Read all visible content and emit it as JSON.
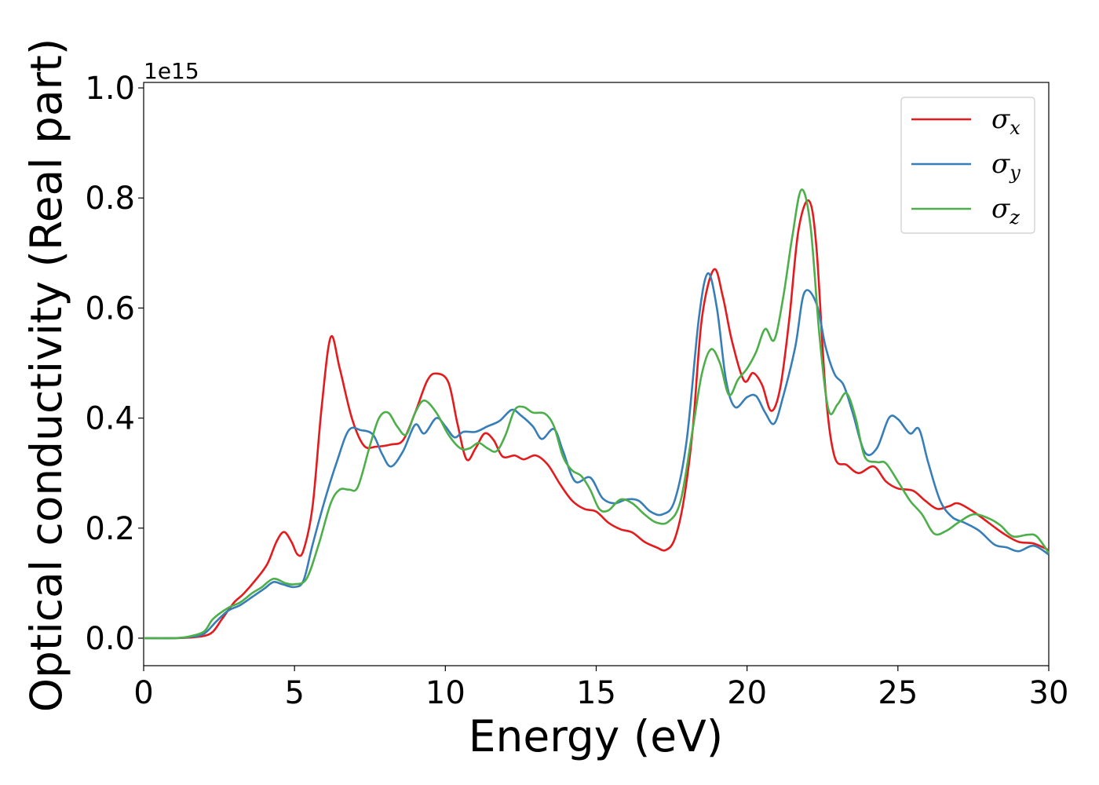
{
  "chart_data": {
    "type": "line",
    "title": "",
    "xlabel": "Energy (eV)",
    "ylabel": "Optical conductivity (Real part)",
    "y_offset_text": "1e15",
    "xlim": [
      0,
      30
    ],
    "ylim": [
      -0.05,
      1.01
    ],
    "y_scale_multiplier": 1000000000000000.0,
    "x_ticks": [
      0,
      5,
      10,
      15,
      20,
      25,
      30
    ],
    "x_tick_labels": [
      "0",
      "5",
      "10",
      "15",
      "20",
      "25",
      "30"
    ],
    "y_ticks": [
      0.0,
      0.2,
      0.4,
      0.6,
      0.8,
      1.0
    ],
    "y_tick_labels": [
      "0.0",
      "0.2",
      "0.4",
      "0.6",
      "0.8",
      "1.0"
    ],
    "grid": false,
    "legend_position": "top-right",
    "series": [
      {
        "name": "σx",
        "symbol": "σ",
        "subscript": "x",
        "color": "#e41a1c",
        "points": [
          [
            0,
            0
          ],
          [
            1,
            0
          ],
          [
            1.5,
            0.001
          ],
          [
            2,
            0.004
          ],
          [
            2.3,
            0.012
          ],
          [
            2.6,
            0.035
          ],
          [
            3,
            0.065
          ],
          [
            3.3,
            0.08
          ],
          [
            3.7,
            0.105
          ],
          [
            4.1,
            0.135
          ],
          [
            4.4,
            0.175
          ],
          [
            4.65,
            0.193
          ],
          [
            4.9,
            0.175
          ],
          [
            5.1,
            0.152
          ],
          [
            5.3,
            0.16
          ],
          [
            5.6,
            0.24
          ],
          [
            5.9,
            0.42
          ],
          [
            6.2,
            0.547
          ],
          [
            6.5,
            0.49
          ],
          [
            6.9,
            0.4
          ],
          [
            7.3,
            0.35
          ],
          [
            7.7,
            0.348
          ],
          [
            8.2,
            0.352
          ],
          [
            8.6,
            0.36
          ],
          [
            9,
            0.41
          ],
          [
            9.4,
            0.468
          ],
          [
            9.7,
            0.481
          ],
          [
            10.1,
            0.465
          ],
          [
            10.4,
            0.39
          ],
          [
            10.7,
            0.325
          ],
          [
            11,
            0.345
          ],
          [
            11.3,
            0.372
          ],
          [
            11.6,
            0.36
          ],
          [
            11.9,
            0.33
          ],
          [
            12.3,
            0.332
          ],
          [
            12.6,
            0.325
          ],
          [
            13,
            0.332
          ],
          [
            13.4,
            0.315
          ],
          [
            13.8,
            0.28
          ],
          [
            14.2,
            0.25
          ],
          [
            14.6,
            0.235
          ],
          [
            15,
            0.23
          ],
          [
            15.4,
            0.21
          ],
          [
            15.8,
            0.198
          ],
          [
            16.2,
            0.192
          ],
          [
            16.6,
            0.175
          ],
          [
            17,
            0.165
          ],
          [
            17.3,
            0.16
          ],
          [
            17.6,
            0.18
          ],
          [
            17.9,
            0.25
          ],
          [
            18.2,
            0.38
          ],
          [
            18.5,
            0.58
          ],
          [
            18.9,
            0.67
          ],
          [
            19.2,
            0.62
          ],
          [
            19.5,
            0.54
          ],
          [
            19.9,
            0.468
          ],
          [
            20.2,
            0.482
          ],
          [
            20.5,
            0.46
          ],
          [
            20.8,
            0.413
          ],
          [
            21.1,
            0.455
          ],
          [
            21.4,
            0.58
          ],
          [
            21.7,
            0.74
          ],
          [
            22.05,
            0.795
          ],
          [
            22.3,
            0.71
          ],
          [
            22.6,
            0.45
          ],
          [
            22.9,
            0.33
          ],
          [
            23.3,
            0.315
          ],
          [
            23.7,
            0.3
          ],
          [
            24.2,
            0.312
          ],
          [
            24.6,
            0.285
          ],
          [
            25,
            0.272
          ],
          [
            25.5,
            0.268
          ],
          [
            25.9,
            0.25
          ],
          [
            26.3,
            0.235
          ],
          [
            26.7,
            0.24
          ],
          [
            27,
            0.245
          ],
          [
            27.5,
            0.23
          ],
          [
            28,
            0.21
          ],
          [
            28.5,
            0.19
          ],
          [
            29,
            0.175
          ],
          [
            29.5,
            0.172
          ],
          [
            30,
            0.16
          ]
        ]
      },
      {
        "name": "σy",
        "symbol": "σ",
        "subscript": "y",
        "color": "#377eb8",
        "points": [
          [
            0,
            0
          ],
          [
            1,
            0
          ],
          [
            1.5,
            0.002
          ],
          [
            2,
            0.008
          ],
          [
            2.4,
            0.03
          ],
          [
            2.8,
            0.05
          ],
          [
            3.2,
            0.06
          ],
          [
            3.6,
            0.075
          ],
          [
            4,
            0.09
          ],
          [
            4.3,
            0.102
          ],
          [
            4.6,
            0.098
          ],
          [
            5,
            0.093
          ],
          [
            5.3,
            0.105
          ],
          [
            5.6,
            0.17
          ],
          [
            6,
            0.25
          ],
          [
            6.4,
            0.32
          ],
          [
            6.8,
            0.378
          ],
          [
            7.2,
            0.378
          ],
          [
            7.6,
            0.37
          ],
          [
            7.9,
            0.335
          ],
          [
            8.2,
            0.312
          ],
          [
            8.6,
            0.34
          ],
          [
            9,
            0.388
          ],
          [
            9.3,
            0.372
          ],
          [
            9.7,
            0.4
          ],
          [
            10,
            0.385
          ],
          [
            10.3,
            0.365
          ],
          [
            10.6,
            0.375
          ],
          [
            11,
            0.375
          ],
          [
            11.4,
            0.385
          ],
          [
            11.8,
            0.395
          ],
          [
            12.2,
            0.415
          ],
          [
            12.5,
            0.405
          ],
          [
            12.9,
            0.385
          ],
          [
            13.2,
            0.362
          ],
          [
            13.6,
            0.38
          ],
          [
            13.9,
            0.34
          ],
          [
            14.3,
            0.285
          ],
          [
            14.8,
            0.292
          ],
          [
            15.2,
            0.255
          ],
          [
            15.6,
            0.245
          ],
          [
            16,
            0.252
          ],
          [
            16.4,
            0.25
          ],
          [
            16.8,
            0.23
          ],
          [
            17.2,
            0.225
          ],
          [
            17.6,
            0.25
          ],
          [
            18,
            0.36
          ],
          [
            18.4,
            0.58
          ],
          [
            18.7,
            0.663
          ],
          [
            19,
            0.6
          ],
          [
            19.3,
            0.47
          ],
          [
            19.6,
            0.42
          ],
          [
            20,
            0.438
          ],
          [
            20.3,
            0.44
          ],
          [
            20.6,
            0.41
          ],
          [
            20.9,
            0.39
          ],
          [
            21.2,
            0.44
          ],
          [
            21.6,
            0.53
          ],
          [
            21.9,
            0.628
          ],
          [
            22.3,
            0.608
          ],
          [
            22.6,
            0.53
          ],
          [
            22.9,
            0.48
          ],
          [
            23.2,
            0.46
          ],
          [
            23.5,
            0.41
          ],
          [
            23.9,
            0.338
          ],
          [
            24.3,
            0.345
          ],
          [
            24.7,
            0.4
          ],
          [
            25,
            0.398
          ],
          [
            25.4,
            0.372
          ],
          [
            25.7,
            0.38
          ],
          [
            26,
            0.32
          ],
          [
            26.4,
            0.25
          ],
          [
            26.8,
            0.22
          ],
          [
            27.2,
            0.21
          ],
          [
            27.7,
            0.195
          ],
          [
            28.2,
            0.17
          ],
          [
            28.6,
            0.165
          ],
          [
            29,
            0.158
          ],
          [
            29.5,
            0.168
          ],
          [
            30,
            0.152
          ]
        ]
      },
      {
        "name": "σz",
        "symbol": "σ",
        "subscript": "z",
        "color": "#4daf4a",
        "points": [
          [
            0,
            0
          ],
          [
            1,
            0
          ],
          [
            1.5,
            0.003
          ],
          [
            2,
            0.012
          ],
          [
            2.3,
            0.035
          ],
          [
            2.8,
            0.055
          ],
          [
            3.2,
            0.065
          ],
          [
            3.6,
            0.082
          ],
          [
            3.9,
            0.092
          ],
          [
            4.3,
            0.108
          ],
          [
            4.7,
            0.1
          ],
          [
            5,
            0.098
          ],
          [
            5.4,
            0.108
          ],
          [
            5.8,
            0.17
          ],
          [
            6.2,
            0.245
          ],
          [
            6.5,
            0.27
          ],
          [
            6.8,
            0.27
          ],
          [
            7.1,
            0.275
          ],
          [
            7.5,
            0.35
          ],
          [
            7.8,
            0.4
          ],
          [
            8.1,
            0.41
          ],
          [
            8.4,
            0.385
          ],
          [
            8.7,
            0.37
          ],
          [
            9,
            0.41
          ],
          [
            9.3,
            0.432
          ],
          [
            9.7,
            0.41
          ],
          [
            10.1,
            0.37
          ],
          [
            10.5,
            0.345
          ],
          [
            10.8,
            0.345
          ],
          [
            11.1,
            0.355
          ],
          [
            11.4,
            0.345
          ],
          [
            11.7,
            0.34
          ],
          [
            12,
            0.37
          ],
          [
            12.3,
            0.415
          ],
          [
            12.6,
            0.42
          ],
          [
            12.9,
            0.41
          ],
          [
            13.3,
            0.408
          ],
          [
            13.6,
            0.385
          ],
          [
            13.9,
            0.33
          ],
          [
            14.2,
            0.305
          ],
          [
            14.5,
            0.295
          ],
          [
            14.8,
            0.27
          ],
          [
            15.1,
            0.235
          ],
          [
            15.4,
            0.232
          ],
          [
            15.8,
            0.252
          ],
          [
            16.2,
            0.245
          ],
          [
            16.6,
            0.225
          ],
          [
            17,
            0.21
          ],
          [
            17.4,
            0.212
          ],
          [
            17.8,
            0.25
          ],
          [
            18.2,
            0.38
          ],
          [
            18.5,
            0.48
          ],
          [
            18.8,
            0.525
          ],
          [
            19.1,
            0.5
          ],
          [
            19.4,
            0.442
          ],
          [
            19.7,
            0.47
          ],
          [
            20,
            0.49
          ],
          [
            20.3,
            0.52
          ],
          [
            20.6,
            0.562
          ],
          [
            20.9,
            0.542
          ],
          [
            21.2,
            0.62
          ],
          [
            21.5,
            0.73
          ],
          [
            21.8,
            0.815
          ],
          [
            22.1,
            0.75
          ],
          [
            22.4,
            0.55
          ],
          [
            22.7,
            0.415
          ],
          [
            23,
            0.425
          ],
          [
            23.3,
            0.445
          ],
          [
            23.6,
            0.4
          ],
          [
            23.9,
            0.33
          ],
          [
            24.3,
            0.32
          ],
          [
            24.6,
            0.318
          ],
          [
            25,
            0.285
          ],
          [
            25.4,
            0.25
          ],
          [
            25.8,
            0.225
          ],
          [
            26.2,
            0.19
          ],
          [
            26.6,
            0.195
          ],
          [
            27,
            0.21
          ],
          [
            27.5,
            0.225
          ],
          [
            28,
            0.218
          ],
          [
            28.4,
            0.205
          ],
          [
            28.8,
            0.185
          ],
          [
            29.3,
            0.188
          ],
          [
            29.6,
            0.185
          ],
          [
            30,
            0.155
          ]
        ]
      }
    ]
  }
}
